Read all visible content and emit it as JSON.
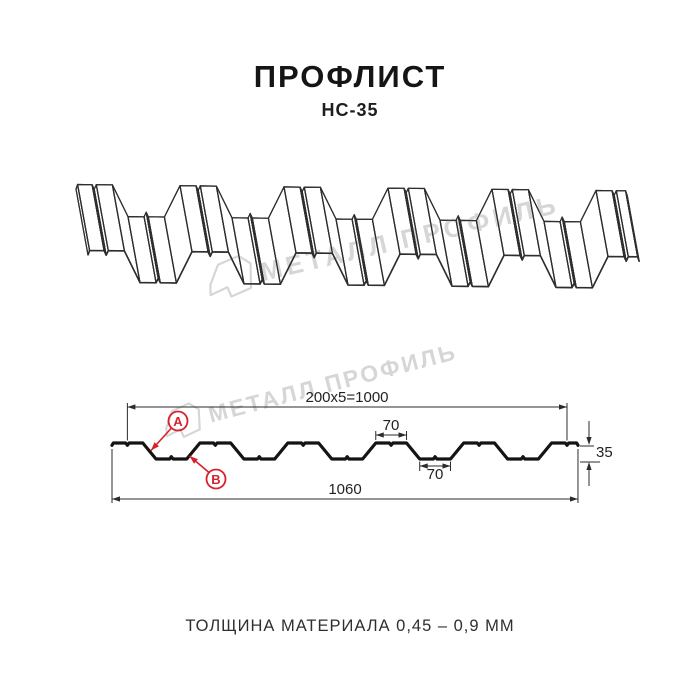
{
  "header": {
    "title": "ПРОФЛИСТ",
    "subtitle": "НС-35"
  },
  "footer": {
    "text": "ТОЛЩИНА МАТЕРИАЛА 0,45 – 0,9 ММ"
  },
  "watermark": {
    "text": "МЕТАЛЛ ПРОФИЛЬ",
    "color": "#d6d6d6"
  },
  "colors": {
    "background": "#ffffff",
    "sheet_line": "#2e2e2e",
    "profile_line": "#141414",
    "dimension_line": "#2b2b2b",
    "marker_red": "#d6212b"
  },
  "drawing": {
    "type": "technical-drawing",
    "product": "Профлист НС-35",
    "views": [
      "perspective-sheet",
      "cross-section"
    ],
    "dimension_labels": {
      "module": "200x5=1000",
      "crest_width": "70",
      "trough_width": "70",
      "overall_width": "1060",
      "height": "35"
    },
    "markers": {
      "a": "А",
      "b": "В"
    },
    "profile_mm": {
      "overall_width": 1060,
      "working_width": 1000,
      "module": 200,
      "module_count": 5,
      "height": 35,
      "crest_width": 70,
      "trough_width": 70,
      "slope_run": 30,
      "edge_drop": 5,
      "notch_half_width": 4,
      "notch_depth": 5
    }
  }
}
